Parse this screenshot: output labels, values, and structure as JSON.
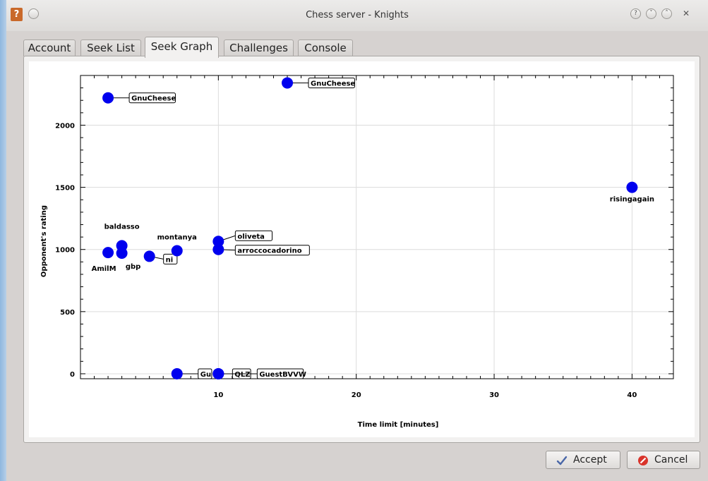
{
  "window": {
    "title": "Chess server - Knights",
    "app_icon_glyph": "?",
    "controls": [
      "help-icon",
      "minimize-icon",
      "maximize-icon",
      "close-icon"
    ]
  },
  "tabs": [
    {
      "label": "Account",
      "active": false
    },
    {
      "label": "Seek List",
      "active": false
    },
    {
      "label": "Seek Graph",
      "active": true
    },
    {
      "label": "Challenges",
      "active": false
    },
    {
      "label": "Console",
      "active": false
    }
  ],
  "buttons": {
    "accept": {
      "label": "Accept",
      "icon": "checkmark-icon"
    },
    "cancel": {
      "label": "Cancel",
      "icon": "cancel-icon"
    }
  },
  "chart_data": {
    "type": "scatter",
    "xlabel": "Time limit [minutes]",
    "ylabel": "Opponent's rating",
    "xlim": [
      0,
      43
    ],
    "ylim": [
      -40,
      2400
    ],
    "xticks": [
      10,
      20,
      30,
      40
    ],
    "yticks": [
      0,
      500,
      1000,
      1500,
      2000
    ],
    "grid": true,
    "point_color": "#0000ee",
    "points": [
      {
        "name": "GnuCheese",
        "x": 2,
        "y": 2220,
        "label_style": "boxed"
      },
      {
        "name": "GnuCheese",
        "x": 15,
        "y": 2340,
        "label_style": "boxed"
      },
      {
        "name": "risingagain",
        "x": 40,
        "y": 1500,
        "label_style": "plain"
      },
      {
        "name": "baldasso",
        "x": 3,
        "y": 1030,
        "label_style": "plain"
      },
      {
        "name": "AmilM",
        "x": 2,
        "y": 975,
        "label_style": "plain"
      },
      {
        "name": "gbp",
        "x": 3,
        "y": 970,
        "label_style": "plain"
      },
      {
        "name": "ni",
        "x": 5,
        "y": 945,
        "label_style": "boxed"
      },
      {
        "name": "montanya",
        "x": 7,
        "y": 990,
        "label_style": "plain"
      },
      {
        "name": "oliveta",
        "x": 10,
        "y": 1065,
        "label_style": "boxed"
      },
      {
        "name": "arroccocadorino",
        "x": 10,
        "y": 1000,
        "label_style": "boxed"
      },
      {
        "name": "Gu",
        "x": 7,
        "y": 0,
        "label_style": "boxed"
      },
      {
        "name": "QLZ",
        "x": 10,
        "y": 0,
        "label_style": "boxed"
      },
      {
        "name": "GuestBVVW",
        "x": 10,
        "y": 0,
        "label_style": "boxed"
      }
    ]
  }
}
